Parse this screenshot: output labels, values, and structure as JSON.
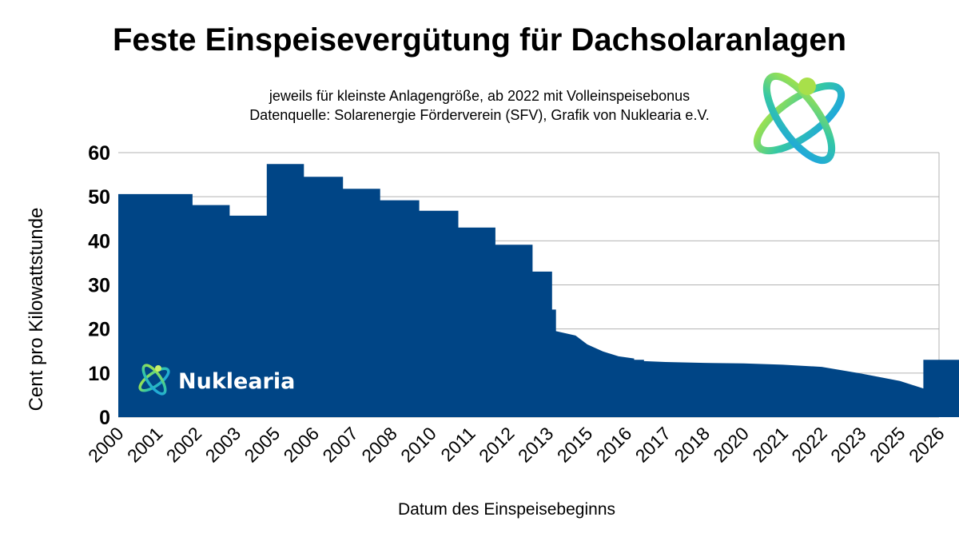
{
  "header": {
    "title": "Feste Einspeisevergütung für Dachsolaranlagen",
    "subtitle_line1": "jeweils für kleinste Anlagengröße, ab 2022 mit Volleinspeisebonus",
    "subtitle_line2": "Datenquelle: Solarenergie Förderverein (SFV), Grafik von Nuklearia e.V."
  },
  "logo": {
    "text": "Nuklearia",
    "icon": "atom-icon",
    "accent": "#3ec6a8"
  },
  "chart_data": {
    "type": "area",
    "xlabel": "Datum des Einspeisebeginns",
    "ylabel": "Cent pro Kilowattstunde",
    "ylim": [
      0,
      60
    ],
    "yticks": [
      0,
      10,
      20,
      30,
      40,
      50,
      60
    ],
    "xticks": [
      "2000",
      "2001",
      "2002",
      "2003",
      "2005",
      "2006",
      "2007",
      "2008",
      "2010",
      "2011",
      "2012",
      "2013",
      "2015",
      "2016",
      "2017",
      "2018",
      "2020",
      "2021",
      "2022",
      "2023",
      "2025",
      "2026"
    ],
    "grid": true,
    "color": "#004586",
    "series": [
      {
        "x": [
          0,
          1.9,
          1.9,
          2.85,
          2.85,
          3.8,
          3.8,
          4.75,
          4.75,
          5.75,
          5.75,
          6.7,
          6.7,
          7.7,
          7.7,
          8.7,
          8.7,
          9.65,
          9.65,
          10.6,
          10.6,
          11.1,
          11.1,
          11.2,
          11.2,
          11.7,
          12.0,
          12.4,
          12.8,
          13.2,
          13.2,
          13.45,
          13.45,
          14.0,
          15.0,
          16.0,
          17.0,
          18.0,
          19.0,
          20.0,
          20.6,
          20.6,
          22.0,
          23.0,
          24.0,
          25.0
        ],
        "y": [
          50.6,
          50.6,
          48.1,
          48.1,
          45.7,
          45.7,
          57.4,
          57.4,
          54.5,
          54.5,
          51.8,
          51.8,
          49.2,
          49.2,
          46.8,
          46.8,
          43.0,
          43.0,
          39.1,
          39.1,
          33.0,
          33.0,
          24.4,
          24.4,
          19.5,
          18.5,
          16.5,
          14.9,
          13.8,
          13.3,
          13.0,
          13.0,
          12.7,
          12.5,
          12.3,
          12.2,
          11.9,
          11.4,
          9.9,
          8.2,
          6.5,
          13.0,
          13.0,
          12.8,
          12.6,
          12.3
        ]
      }
    ]
  }
}
